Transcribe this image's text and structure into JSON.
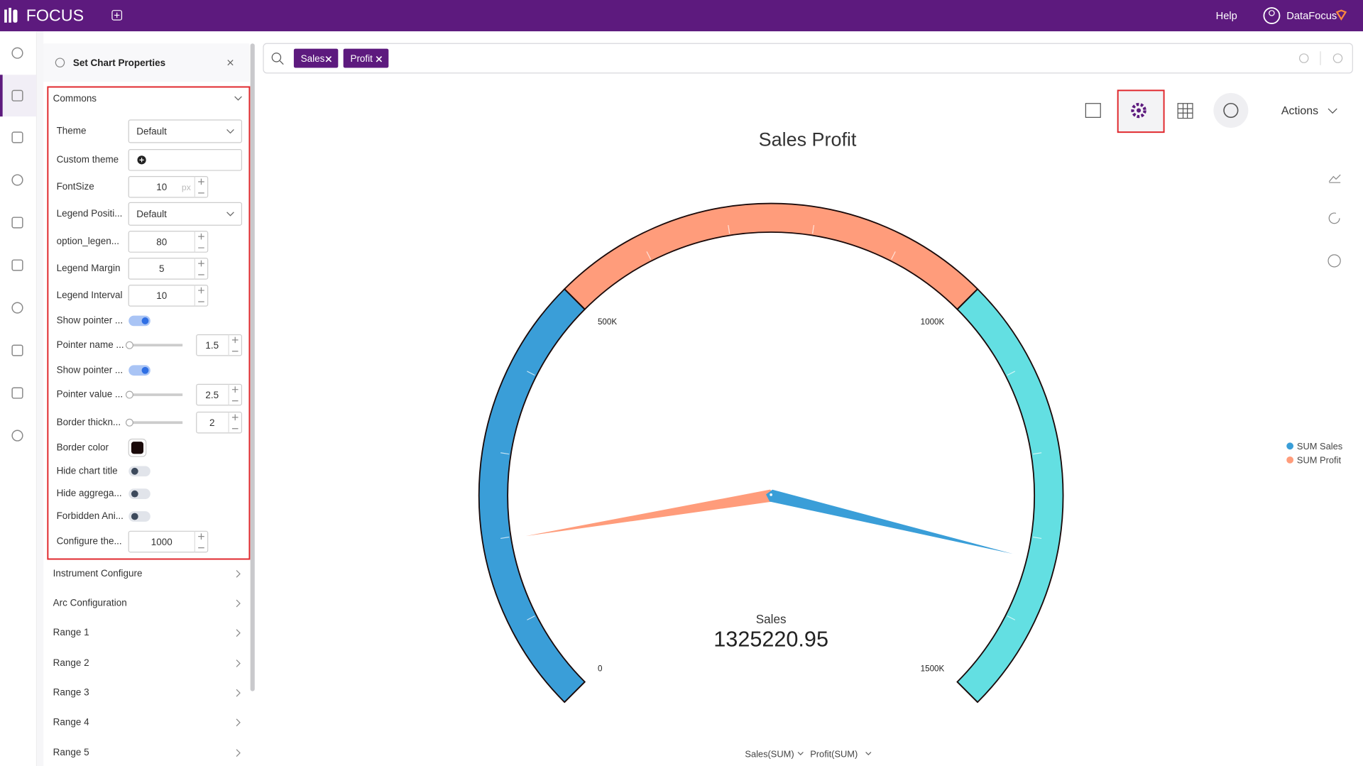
{
  "header": {
    "logo": "FOCUS",
    "help": "Help",
    "user": "DataFocus"
  },
  "panel": {
    "title": "Set Chart Properties",
    "section": "Commons",
    "fields": [
      {
        "label": "Theme",
        "type": "select",
        "value": "Default"
      },
      {
        "label": "Custom theme",
        "type": "custom"
      },
      {
        "label": "FontSize",
        "type": "number",
        "value": 10,
        "unit": "px"
      },
      {
        "label": "Legend Positi...",
        "type": "select",
        "value": "Default"
      },
      {
        "label": "option_legen...",
        "type": "number",
        "value": 80
      },
      {
        "label": "Legend Margin",
        "type": "number",
        "value": 5
      },
      {
        "label": "Legend Interval",
        "type": "number",
        "value": 10
      },
      {
        "label": "Show pointer ...",
        "type": "toggle",
        "on": true
      },
      {
        "label": "Pointer name ...",
        "type": "slider",
        "value": 1.5
      },
      {
        "label": "Show pointer ...",
        "type": "toggle",
        "on": true
      },
      {
        "label": "Pointer value ...",
        "type": "slider",
        "value": 2.5
      },
      {
        "label": "Border thickn...",
        "type": "slider",
        "value": 2
      },
      {
        "label": "Border color",
        "type": "color",
        "color": "#1a0a0a"
      },
      {
        "label": "Hide chart title",
        "type": "toggle",
        "on": false
      },
      {
        "label": "Hide aggrega...",
        "type": "toggle",
        "on": false
      },
      {
        "label": "Forbidden Ani...",
        "type": "toggle",
        "on": false
      },
      {
        "label": "Configure the...",
        "type": "number",
        "value": 1000
      }
    ],
    "sections": [
      "Instrument Configure",
      "Arc Configuration",
      "Range 1",
      "Range 2",
      "Range 3",
      "Range 4",
      "Range 5"
    ]
  },
  "search": {
    "tokens": [
      "Sales",
      "Profit"
    ]
  },
  "toolbar": {
    "actions": "Actions"
  },
  "chart_data": {
    "type": "gauge",
    "title": "Sales Profit",
    "ylim": [
      0,
      1500000
    ],
    "yticks": [
      0,
      {
        "value": 500000,
        "label": "500K"
      },
      {
        "value": 1000000,
        "label": "1000K"
      },
      {
        "value": 1500000,
        "label": "1500K"
      }
    ],
    "split_number": 5,
    "band_colors": [
      "#3a9ed8",
      "#ff9c7b",
      "#63dfe2"
    ],
    "series": [
      {
        "name": "SUM Sales",
        "color": "#3a9ed8",
        "values": [
          1325220.95
        ]
      },
      {
        "name": "SUM Profit",
        "color": "#ff9c7b",
        "values": [
          198000
        ]
      }
    ],
    "detail_name": "Sales",
    "legend": "right",
    "axis_selectors": [
      "Sales(SUM)",
      "Profit(SUM)"
    ]
  }
}
